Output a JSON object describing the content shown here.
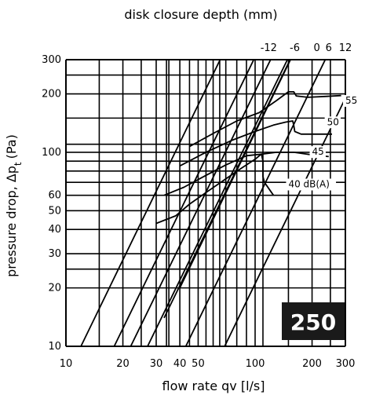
{
  "chart_data": {
    "type": "line",
    "title": "",
    "xlabel": "flow rate qv [l/s]",
    "ylabel_main": "pressure drop, Δp",
    "ylabel_sub": "t",
    "ylabel_unit": "(Pa)",
    "x2label": "disk closure depth (mm)",
    "xscale": "log",
    "yscale": "log",
    "xlim": [
      10,
      300
    ],
    "ylim": [
      10,
      300
    ],
    "grid": true,
    "xticks": [
      10,
      20,
      30,
      40,
      50,
      100,
      200,
      300
    ],
    "yticks": [
      10,
      20,
      30,
      40,
      50,
      60,
      100,
      200,
      300
    ],
    "x_grid": [
      10,
      15,
      20,
      25,
      30,
      34,
      35,
      40,
      45,
      50,
      55,
      60,
      65,
      70,
      80,
      90,
      100,
      110,
      150,
      200,
      250,
      300
    ],
    "y_grid": [
      10,
      20,
      25,
      30,
      40,
      50,
      60,
      70,
      80,
      90,
      100,
      110,
      150,
      200,
      250,
      300
    ],
    "badge": "250",
    "closure_lines": [
      {
        "label": "-12",
        "points": [
          [
            12,
            10
          ],
          [
            300,
            6400
          ]
        ]
      },
      {
        "label": "-6",
        "points": [
          [
            18,
            10
          ],
          [
            300,
            2800
          ]
        ]
      },
      {
        "label": "0",
        "points": [
          [
            27,
            10
          ],
          [
            300,
            1230
          ]
        ]
      },
      {
        "label": "6",
        "points": [
          [
            43,
            10
          ],
          [
            300,
            490
          ]
        ]
      },
      {
        "label": "12",
        "points": [
          [
            69,
            10
          ],
          [
            300,
            190
          ]
        ]
      },
      {
        "label": "",
        "points": [
          [
            33,
            14
          ],
          [
            300,
            1150
          ]
        ]
      },
      {
        "label": "",
        "points": [
          [
            40,
            20
          ],
          [
            300,
            1150
          ]
        ]
      },
      {
        "label": "",
        "points": [
          [
            22,
            10
          ],
          [
            300,
            1850
          ]
        ]
      }
    ],
    "sound_curves": [
      {
        "name": "40 dB(A)",
        "points": [
          [
            30,
            43
          ],
          [
            38,
            47
          ],
          [
            45,
            54
          ],
          [
            55,
            62
          ],
          [
            70,
            73
          ],
          [
            85,
            83
          ],
          [
            100,
            92
          ],
          [
            108,
            98
          ],
          [
            110,
            90
          ],
          [
            110,
            75
          ],
          [
            112,
            70
          ],
          [
            125,
            60
          ]
        ]
      },
      {
        "name": "45",
        "points": [
          [
            33,
            60
          ],
          [
            42,
            66
          ],
          [
            55,
            76
          ],
          [
            70,
            86
          ],
          [
            90,
            96
          ],
          [
            110,
            98
          ],
          [
            130,
            100
          ],
          [
            160,
            100
          ],
          [
            200,
            97
          ],
          [
            245,
            95
          ]
        ]
      },
      {
        "name": "50",
        "points": [
          [
            40,
            85
          ],
          [
            55,
            100
          ],
          [
            75,
            115
          ],
          [
            100,
            128
          ],
          [
            125,
            138
          ],
          [
            145,
            143
          ],
          [
            158,
            145
          ],
          [
            160,
            138
          ],
          [
            162,
            128
          ],
          [
            175,
            124
          ],
          [
            215,
            124
          ],
          [
            255,
            124
          ]
        ]
      },
      {
        "name": "55",
        "points": [
          [
            45,
            107
          ],
          [
            60,
            125
          ],
          [
            80,
            145
          ],
          [
            105,
            160
          ],
          [
            130,
            185
          ],
          [
            150,
            205
          ],
          [
            160,
            205
          ],
          [
            165,
            195
          ],
          [
            190,
            192
          ],
          [
            235,
            194
          ],
          [
            285,
            196
          ]
        ]
      }
    ],
    "x2_ticks": [
      {
        "label": "-12",
        "x": 118
      },
      {
        "label": "-6",
        "x": 162
      },
      {
        "label": "0",
        "x": 212
      },
      {
        "label": "6",
        "x": 245
      },
      {
        "label": "12",
        "x": 300
      }
    ],
    "label_positions": {
      "55": [
        300,
        178
      ],
      "50": [
        240,
        138
      ],
      "45": [
        200,
        97
      ],
      "40 dB(A)": [
        150,
        66
      ]
    }
  }
}
